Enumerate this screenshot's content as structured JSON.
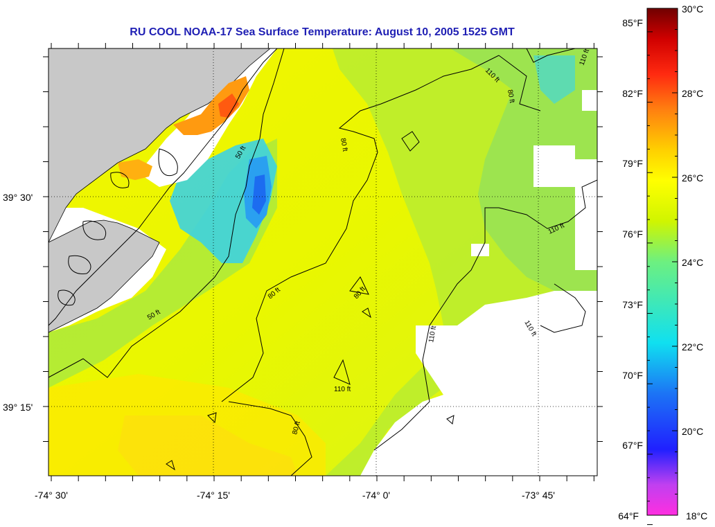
{
  "title": "RU COOL  NOAA-17  Sea Surface Temperature:  August 10, 2005 1525 GMT",
  "map": {
    "x_ticks": [
      "-74° 30'",
      "-74° 15'",
      "-74° 0'",
      "-73° 45'"
    ],
    "y_ticks": [
      "39° 30'",
      "39° 15'"
    ],
    "contour_labels": [
      "110 ft",
      "80 ft",
      "110 ft",
      "50 ft",
      "80 ft",
      "110 ft",
      "50 ft",
      "80 ft",
      "80 ft",
      "110 ft",
      "110 ft",
      "110 ft",
      "80 ft"
    ],
    "colors": {
      "land": "#c8c8c8",
      "no_data": "#ffffff",
      "sst_main": "#e8f500"
    }
  },
  "colorbar": {
    "f_labels": [
      "85°F",
      "82°F",
      "79°F",
      "76°F",
      "73°F",
      "70°F",
      "67°F",
      "64°F"
    ],
    "c_labels": [
      "30°C",
      "28°C",
      "26°C",
      "24°C",
      "22°C",
      "20°C",
      "18°C"
    ],
    "range_c": [
      18,
      30
    ]
  }
}
